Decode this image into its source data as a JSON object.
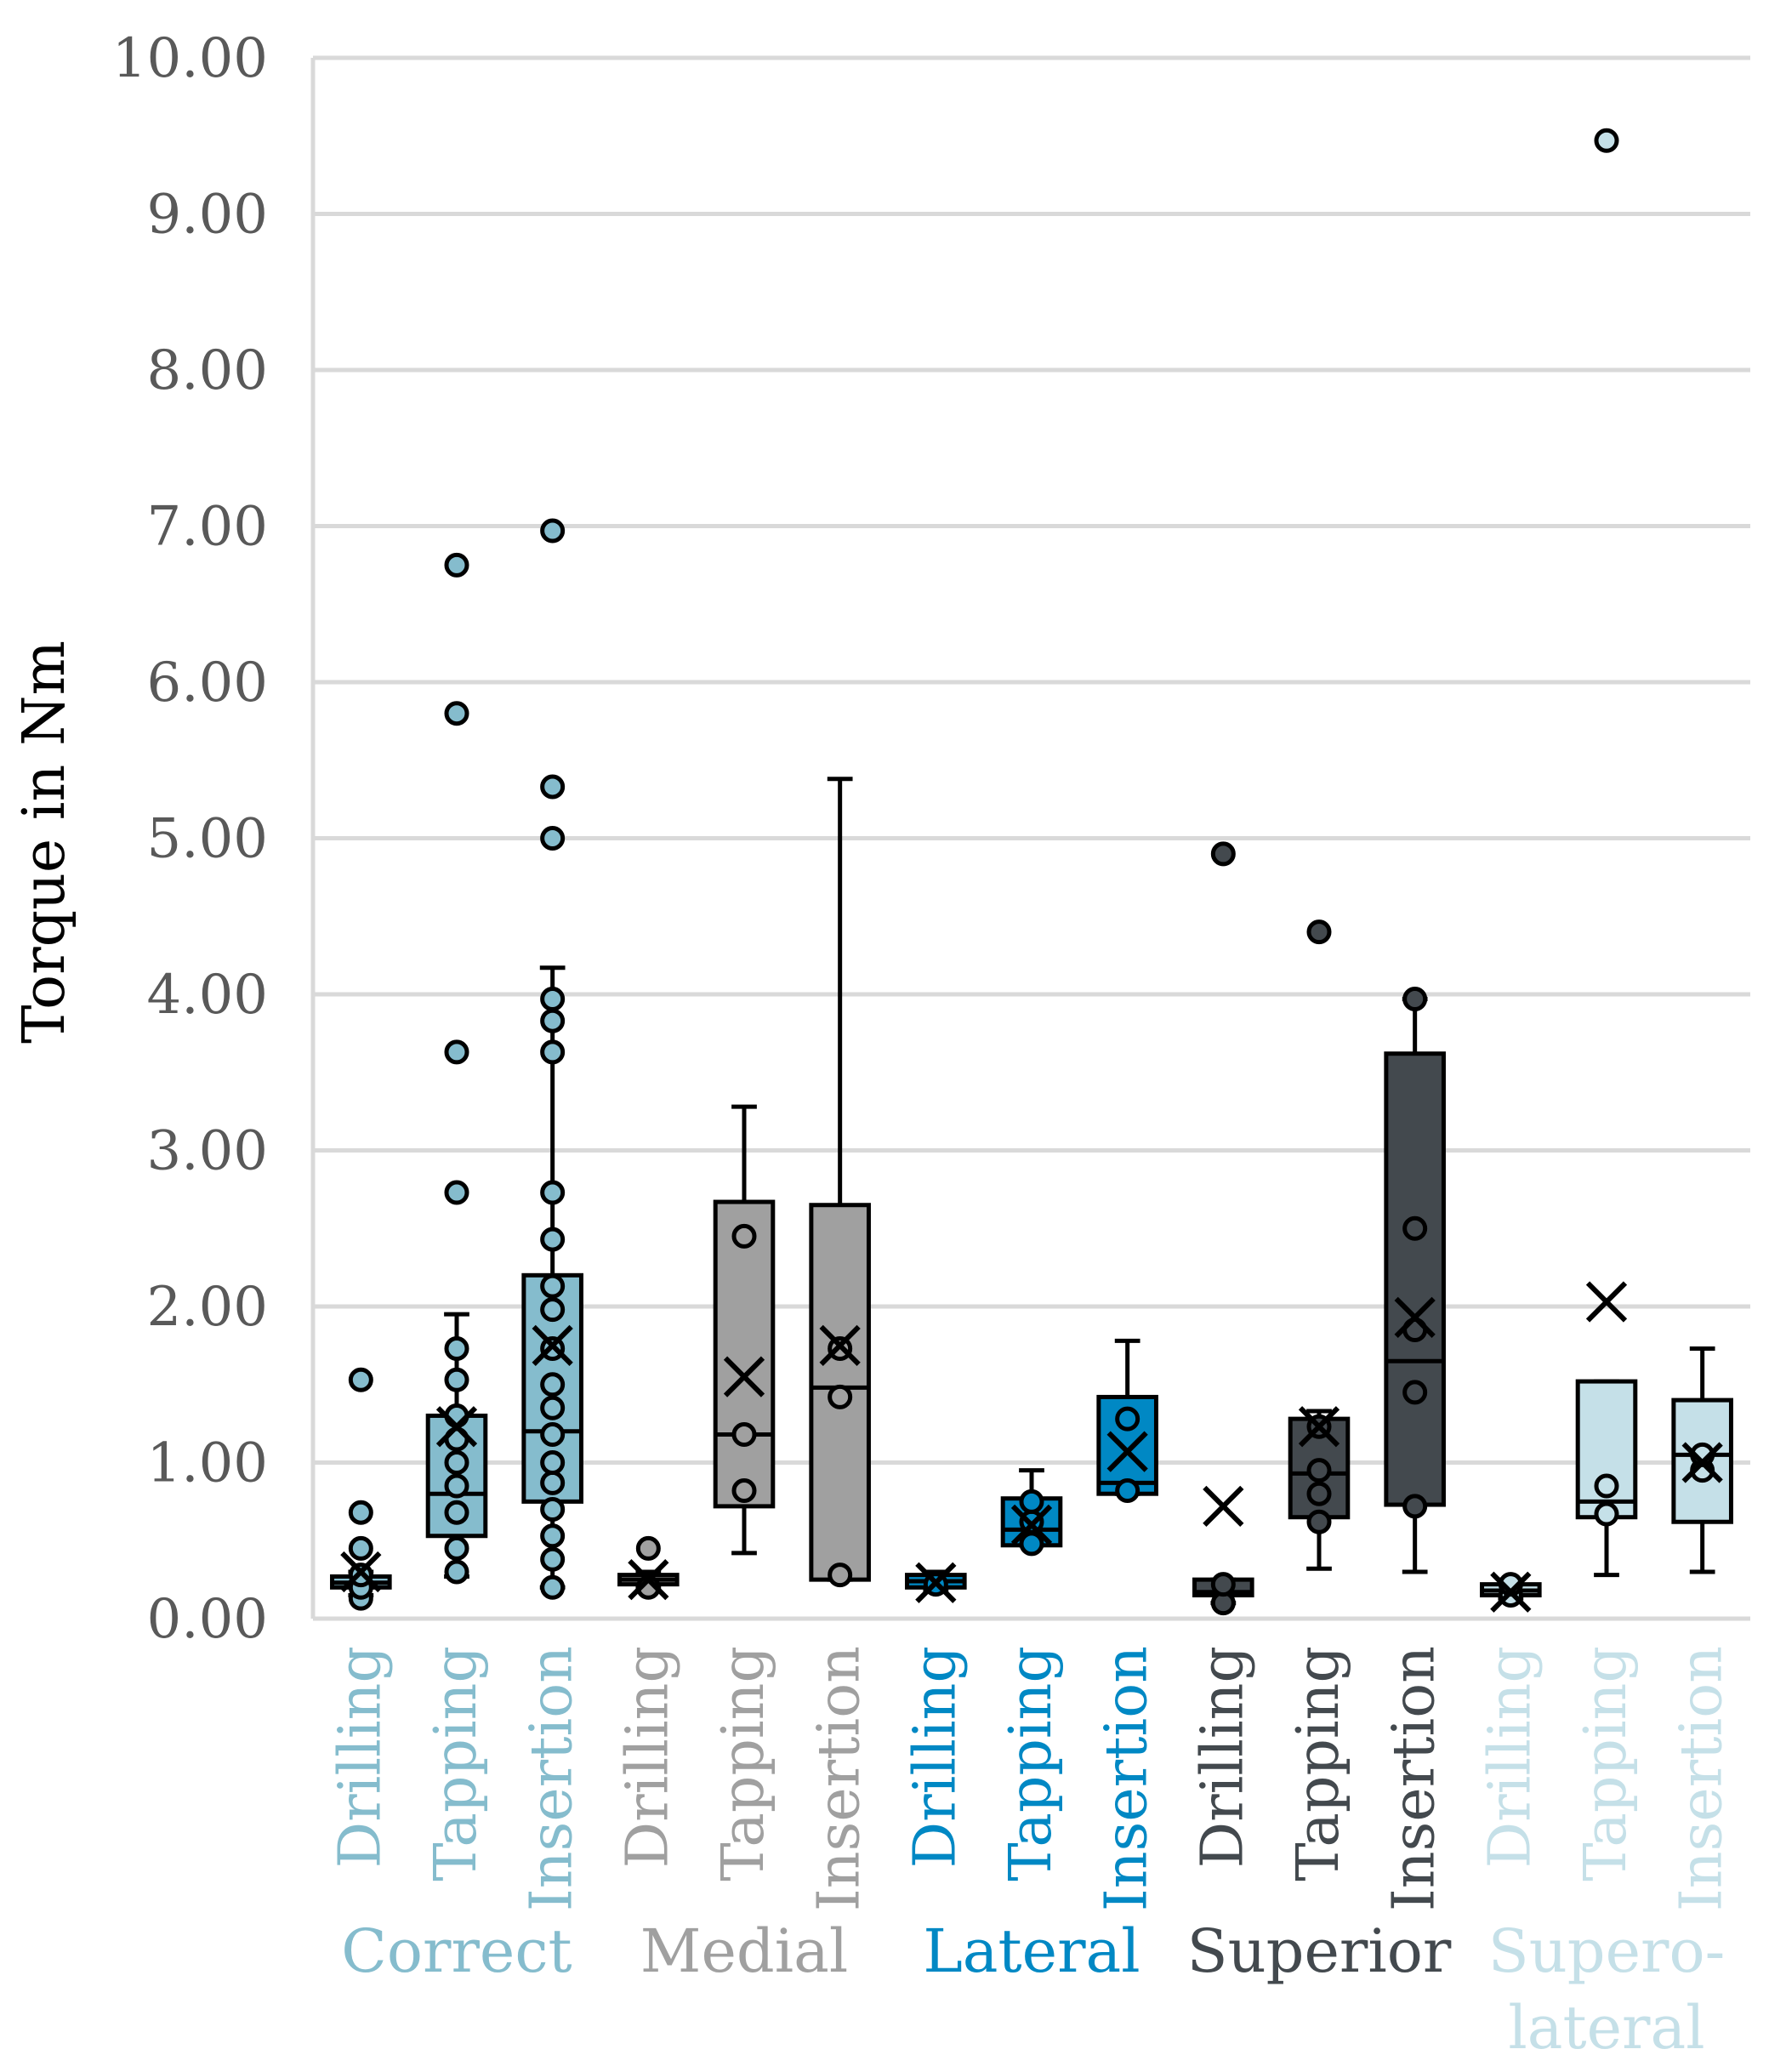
{
  "chart_data": {
    "type": "box",
    "title": "",
    "ylabel": "Torque in Nm",
    "xlabel": "",
    "ylim": [
      0,
      10
    ],
    "ytick_step": 1,
    "ytick_labels": [
      "0.00",
      "1.00",
      "2.00",
      "3.00",
      "4.00",
      "5.00",
      "6.00",
      "7.00",
      "8.00",
      "9.00",
      "10.00"
    ],
    "grid": true,
    "groups": [
      {
        "name": "Correct",
        "name_lines": [
          "Correct"
        ],
        "color": "#85BCCD",
        "label_color": "#85BCCD",
        "boxes": [
          {
            "label": "Drilling",
            "q1": 0.2,
            "median": 0.23,
            "q3": 0.27,
            "whisker_low": 0.15,
            "whisker_high": 0.3,
            "mean": 0.3,
            "points": [
              0.13,
              0.2,
              0.28,
              0.45,
              0.68,
              1.53
            ]
          },
          {
            "label": "Tapping",
            "q1": 0.53,
            "median": 0.8,
            "q3": 1.3,
            "whisker_low": 0.27,
            "whisker_high": 1.95,
            "mean": 1.23,
            "points": [
              0.3,
              0.45,
              0.68,
              0.85,
              1.0,
              1.15,
              1.3,
              1.53,
              1.73,
              2.73,
              3.63,
              5.8,
              6.75
            ]
          },
          {
            "label": "Insertion",
            "q1": 0.75,
            "median": 1.2,
            "q3": 2.2,
            "whisker_low": 0.2,
            "whisker_high": 4.17,
            "mean": 1.75,
            "points": [
              0.2,
              0.38,
              0.53,
              0.7,
              0.87,
              1.0,
              1.18,
              1.35,
              1.5,
              1.73,
              1.98,
              2.13,
              2.43,
              2.73,
              3.63,
              3.83,
              3.97,
              5.0,
              5.33,
              6.97
            ]
          }
        ]
      },
      {
        "name": "Medial",
        "name_lines": [
          "Medial"
        ],
        "color": "#A0A0A0",
        "label_color": "#A0A0A0",
        "boxes": [
          {
            "label": "Drilling",
            "q1": 0.22,
            "median": 0.25,
            "q3": 0.28,
            "whisker_low": 0.2,
            "whisker_high": 0.3,
            "mean": 0.25,
            "points": [
              0.2,
              0.45
            ]
          },
          {
            "label": "Tapping",
            "q1": 0.72,
            "median": 1.18,
            "q3": 2.67,
            "whisker_low": 0.42,
            "whisker_high": 3.28,
            "mean": 1.55,
            "points": [
              0.82,
              1.18,
              2.45
            ]
          },
          {
            "label": "Insertion",
            "q1": 0.25,
            "median": 1.48,
            "q3": 2.65,
            "whisker_low": 0.25,
            "whisker_high": 5.38,
            "mean": 1.75,
            "points": [
              0.28,
              1.42,
              1.73
            ]
          }
        ]
      },
      {
        "name": "Lateral",
        "name_lines": [
          "Lateral"
        ],
        "color": "#0088C4",
        "label_color": "#0088C4",
        "boxes": [
          {
            "label": "Drilling",
            "q1": 0.2,
            "median": 0.24,
            "q3": 0.28,
            "whisker_low": 0.18,
            "whisker_high": 0.3,
            "mean": 0.23,
            "points": [
              0.22
            ]
          },
          {
            "label": "Tapping",
            "q1": 0.47,
            "median": 0.57,
            "q3": 0.77,
            "whisker_low": 0.47,
            "whisker_high": 0.95,
            "mean": 0.6,
            "points": [
              0.48,
              0.62,
              0.75
            ]
          },
          {
            "label": "Insertion",
            "q1": 0.8,
            "median": 0.87,
            "q3": 1.42,
            "whisker_low": 0.8,
            "whisker_high": 1.78,
            "mean": 1.07,
            "points": [
              0.82,
              1.28
            ]
          }
        ]
      },
      {
        "name": "Superior",
        "name_lines": [
          "Superior"
        ],
        "color": "#43494E",
        "label_color": "#43494E",
        "boxes": [
          {
            "label": "Drilling",
            "q1": 0.15,
            "median": 0.17,
            "q3": 0.25,
            "whisker_low": 0.1,
            "whisker_high": 0.25,
            "mean": 0.72,
            "points": [
              0.1,
              0.22,
              4.9
            ]
          },
          {
            "label": "Tapping",
            "q1": 0.65,
            "median": 0.93,
            "q3": 1.28,
            "whisker_low": 0.32,
            "whisker_high": 1.33,
            "mean": 1.23,
            "points": [
              0.62,
              0.8,
              0.95,
              1.23,
              4.4
            ]
          },
          {
            "label": "Insertion",
            "q1": 0.73,
            "median": 1.65,
            "q3": 3.62,
            "whisker_low": 0.3,
            "whisker_high": 3.97,
            "mean": 1.93,
            "points": [
              0.72,
              1.45,
              1.85,
              2.5,
              3.97
            ]
          }
        ]
      },
      {
        "name": "Supero-lateral",
        "name_lines": [
          "Supero-",
          "lateral"
        ],
        "color": "#C5E0E8",
        "label_color": "#C5E0E8",
        "boxes": [
          {
            "label": "Drilling",
            "q1": 0.15,
            "median": 0.18,
            "q3": 0.22,
            "whisker_low": 0.13,
            "whisker_high": 0.25,
            "mean": 0.17,
            "points": [
              0.15,
              0.22
            ]
          },
          {
            "label": "Tapping",
            "q1": 0.65,
            "median": 0.75,
            "q3": 1.52,
            "whisker_low": 0.28,
            "whisker_high": 1.52,
            "mean": 2.03,
            "points": [
              0.67,
              0.85,
              9.47
            ]
          },
          {
            "label": "Insertion",
            "q1": 0.62,
            "median": 1.05,
            "q3": 1.4,
            "whisker_low": 0.3,
            "whisker_high": 1.73,
            "mean": 1.0,
            "points": [
              0.95,
              1.05
            ]
          }
        ]
      }
    ]
  }
}
